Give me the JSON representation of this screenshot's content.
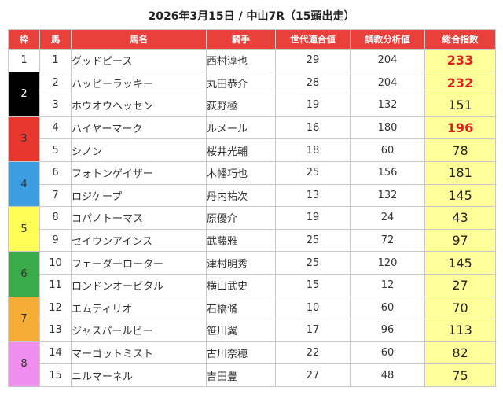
{
  "title": "2026年3月15日 / 中山7R（15頭出走）",
  "headers": {
    "waku": "枠",
    "umaban": "馬",
    "horse": "馬名",
    "jockey": "騎手",
    "generation": "世代適合値",
    "analysis": "調教分析値",
    "index": "総合指数"
  },
  "colors": {
    "header_bg": "#e8413b",
    "index_bg": "#ffff99",
    "index_highlight": "#e0201c",
    "waku_1": "#ffffff",
    "waku_2": "#000000",
    "waku_3": "#e8372e",
    "waku_4": "#3c9de0",
    "waku_5": "#fdfd55",
    "waku_6": "#3bab4a",
    "waku_7": "#f5ad35",
    "waku_8": "#f08ef0"
  },
  "waku_groups": [
    {
      "waku": "1",
      "bg": "#ffffff",
      "fg": "#333333"
    },
    {
      "waku": "2",
      "bg": "#000000",
      "fg": "#ffffff"
    },
    {
      "waku": "3",
      "bg": "#e8372e",
      "fg": "#333333"
    },
    {
      "waku": "4",
      "bg": "#3c9de0",
      "fg": "#333333"
    },
    {
      "waku": "5",
      "bg": "#fdfd55",
      "fg": "#333333"
    },
    {
      "waku": "6",
      "bg": "#3bab4a",
      "fg": "#333333"
    },
    {
      "waku": "7",
      "bg": "#f5ad35",
      "fg": "#333333"
    },
    {
      "waku": "8",
      "bg": "#f08ef0",
      "fg": "#333333"
    }
  ],
  "rows": [
    {
      "waku": "1",
      "umaban": "1",
      "horse": "グッドピース",
      "jockey": "西村淳也",
      "generation": "29",
      "analysis": "204",
      "index": "233",
      "highlight": true
    },
    {
      "waku": "2",
      "umaban": "2",
      "horse": "ハッピーラッキー",
      "jockey": "丸田恭介",
      "generation": "28",
      "analysis": "204",
      "index": "232",
      "highlight": true
    },
    {
      "waku": "2",
      "umaban": "3",
      "horse": "ホウオウヘッセン",
      "jockey": "荻野極",
      "generation": "19",
      "analysis": "132",
      "index": "151",
      "highlight": false
    },
    {
      "waku": "3",
      "umaban": "4",
      "horse": "ハイヤーマーク",
      "jockey": "ルメール",
      "generation": "16",
      "analysis": "180",
      "index": "196",
      "highlight": true
    },
    {
      "waku": "3",
      "umaban": "5",
      "horse": "シノン",
      "jockey": "桜井光輔",
      "generation": "18",
      "analysis": "60",
      "index": "78",
      "highlight": false
    },
    {
      "waku": "4",
      "umaban": "6",
      "horse": "フォトンゲイザー",
      "jockey": "木幡巧也",
      "generation": "25",
      "analysis": "156",
      "index": "181",
      "highlight": false
    },
    {
      "waku": "4",
      "umaban": "7",
      "horse": "ロジケープ",
      "jockey": "丹内祐次",
      "generation": "13",
      "analysis": "132",
      "index": "145",
      "highlight": false
    },
    {
      "waku": "5",
      "umaban": "8",
      "horse": "コパノトーマス",
      "jockey": "原優介",
      "generation": "19",
      "analysis": "24",
      "index": "43",
      "highlight": false
    },
    {
      "waku": "5",
      "umaban": "9",
      "horse": "セイウンアインス",
      "jockey": "武藤雅",
      "generation": "25",
      "analysis": "72",
      "index": "97",
      "highlight": false
    },
    {
      "waku": "6",
      "umaban": "10",
      "horse": "フェーダーローター",
      "jockey": "津村明秀",
      "generation": "25",
      "analysis": "120",
      "index": "145",
      "highlight": false
    },
    {
      "waku": "6",
      "umaban": "11",
      "horse": "ロンドンオービタル",
      "jockey": "横山武史",
      "generation": "15",
      "analysis": "12",
      "index": "27",
      "highlight": false
    },
    {
      "waku": "7",
      "umaban": "12",
      "horse": "エムティリオ",
      "jockey": "石橋脩",
      "generation": "10",
      "analysis": "60",
      "index": "70",
      "highlight": false
    },
    {
      "waku": "7",
      "umaban": "13",
      "horse": "ジャスパールビー",
      "jockey": "笹川翼",
      "generation": "17",
      "analysis": "96",
      "index": "113",
      "highlight": false
    },
    {
      "waku": "8",
      "umaban": "14",
      "horse": "マーゴットミスト",
      "jockey": "古川奈穂",
      "generation": "22",
      "analysis": "60",
      "index": "82",
      "highlight": false
    },
    {
      "waku": "8",
      "umaban": "15",
      "horse": "ニルマーネル",
      "jockey": "吉田豊",
      "generation": "27",
      "analysis": "48",
      "index": "75",
      "highlight": false
    }
  ]
}
